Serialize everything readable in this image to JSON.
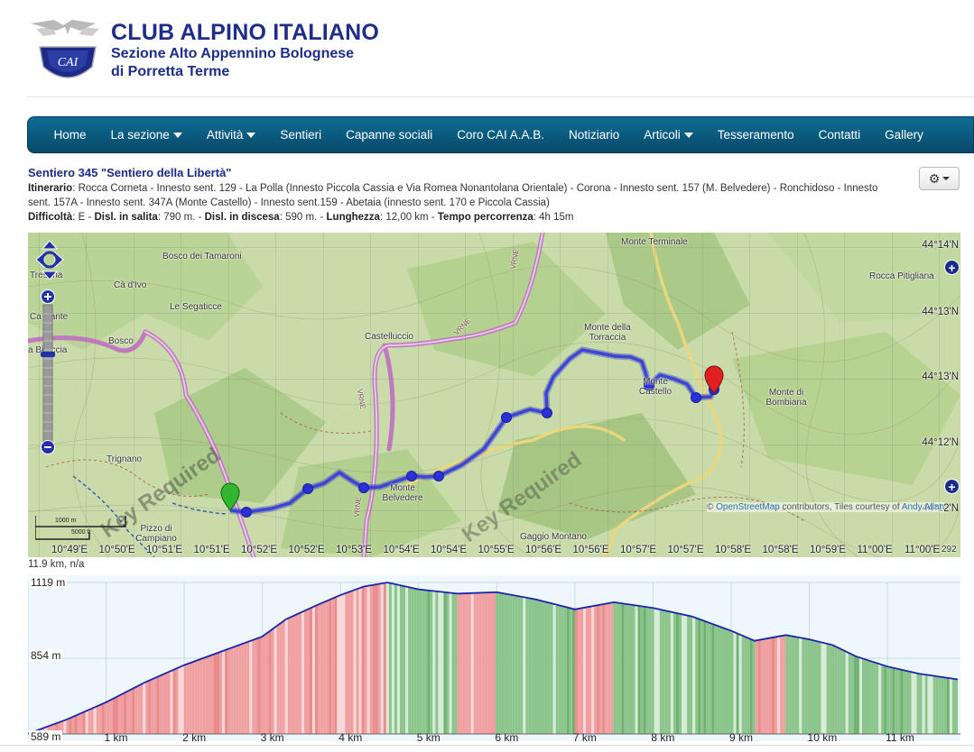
{
  "header": {
    "org_name": "CLUB ALPINO ITALIANO",
    "org_sub1": "Sezione Alto Appennino Bolognese",
    "org_sub2": "di Porretta Terme",
    "logo_text": "CAI"
  },
  "nav": [
    {
      "label": "Home",
      "dropdown": false
    },
    {
      "label": "La sezione",
      "dropdown": true
    },
    {
      "label": "Attività",
      "dropdown": true
    },
    {
      "label": "Sentieri",
      "dropdown": false
    },
    {
      "label": "Capanne sociali",
      "dropdown": false
    },
    {
      "label": "Coro CAI A.A.B.",
      "dropdown": false
    },
    {
      "label": "Notiziario",
      "dropdown": false
    },
    {
      "label": "Articoli",
      "dropdown": true
    },
    {
      "label": "Tesseramento",
      "dropdown": false
    },
    {
      "label": "Contatti",
      "dropdown": false
    },
    {
      "label": "Gallery",
      "dropdown": false
    }
  ],
  "trail": {
    "title": "Sentiero 345 \"Sentiero della Libertà\"",
    "itinerary_label": "Itinerario",
    "itinerary_a": "Rocca Corneta - Innesto sent. 129 - La Polla (Innesto Piccola Cassia e Via Romea Nonantolana Orientale) - Corona - Innesto sent. 157 (M. Belvedere) - Ronchidoso - Innesto",
    "itinerary_b": "sent. 157A - Innesto sent.  347A (Monte Castello) - Innesto sent.159 -  Abetaia (innesto sent. 170 e Piccola Cassia)",
    "difficulty_label": "Difficoltà",
    "difficulty": "E",
    "ascent_label": "Disl. in salita",
    "ascent": "790 m.",
    "descent_label": "Disl. in discesa",
    "descent": "590 m.",
    "length_label": "Lunghezza",
    "length": "12,00 km",
    "time_label": "Tempo percorrenza",
    "time": "4h 15m"
  },
  "map": {
    "places": [
      "Bosco dei Tamaroni",
      "Cà d'Ivo",
      "Le Segaticce",
      "Bosco",
      "Castelluccio",
      "Monte Terminale",
      "Rocca Pitigliana",
      "Monte della Torraccia",
      "Monte Castello",
      "Monte di Bombiana",
      "Trignano",
      "Monte Belvedere",
      "Pizzo di Campiano",
      "Gaggio Montano",
      "Tresana",
      "Ca Dante",
      "a Bi accia"
    ],
    "road_labels": [
      "VRNE",
      "VRNE",
      "VRNE",
      "VRNE"
    ],
    "watermark": "Key Required",
    "latitudes": [
      "44°14'N",
      "44°13'N",
      "44°13'N",
      "44°12'N",
      "44°12'N"
    ],
    "longitudes": [
      "10°49'E",
      "10°50'E",
      "10°51'E",
      "10°51'E",
      "10°52'E",
      "10°52'E",
      "10°53'E",
      "10°54'E",
      "10°54'E",
      "10°55'E",
      "10°56'E",
      "10°56'E",
      "10°57'E",
      "10°57'E",
      "10°58'E",
      "10°58'E",
      "10°59'E",
      "11°00'E",
      "11°00'E"
    ],
    "attribution_prefix": "© ",
    "attribution_link": "OpenStreetMap",
    "attribution_rest": " contributors, Tiles courtesy of ",
    "attribution_tail": "Andy Allan",
    "scale_m": "1000 m",
    "scale_ft": "5000 ft",
    "coord_readout": "292",
    "marker_start": "green",
    "marker_end": "red",
    "route_color": "#3f44d8",
    "side_buttons": [
      "+",
      "+",
      "+"
    ]
  },
  "distance_readout": "11.9 km, n/a",
  "elevation": {
    "max_label": "1119 m",
    "mid_label": "854 m",
    "min_label": "589 m",
    "km_labels": [
      "1 km",
      "2 km",
      "3 km",
      "4 km",
      "5 km",
      "6 km",
      "7 km",
      "8 km",
      "9 km",
      "10 km",
      "11 km"
    ]
  },
  "chart_data": {
    "type": "area",
    "title": "",
    "xlabel": "",
    "ylabel": "",
    "ylim": [
      589,
      1119
    ],
    "xlim": [
      0,
      11.9
    ],
    "x": [
      0,
      0.5,
      1,
      1.5,
      2,
      2.5,
      3,
      3.3,
      3.7,
      4,
      4.3,
      4.6,
      5,
      5.5,
      6,
      6.5,
      7,
      7.5,
      8,
      8.5,
      9,
      9.3,
      9.7,
      10,
      10.3,
      10.6,
      11,
      11.4,
      11.9
    ],
    "series": [
      {
        "values": [
          590,
          640,
          700,
          770,
          830,
          880,
          930,
          990,
          1040,
          1075,
          1105,
          1119,
          1095,
          1080,
          1085,
          1060,
          1025,
          1050,
          1030,
          1000,
          950,
          915,
          935,
          920,
          900,
          860,
          825,
          800,
          780
        ]
      }
    ]
  }
}
